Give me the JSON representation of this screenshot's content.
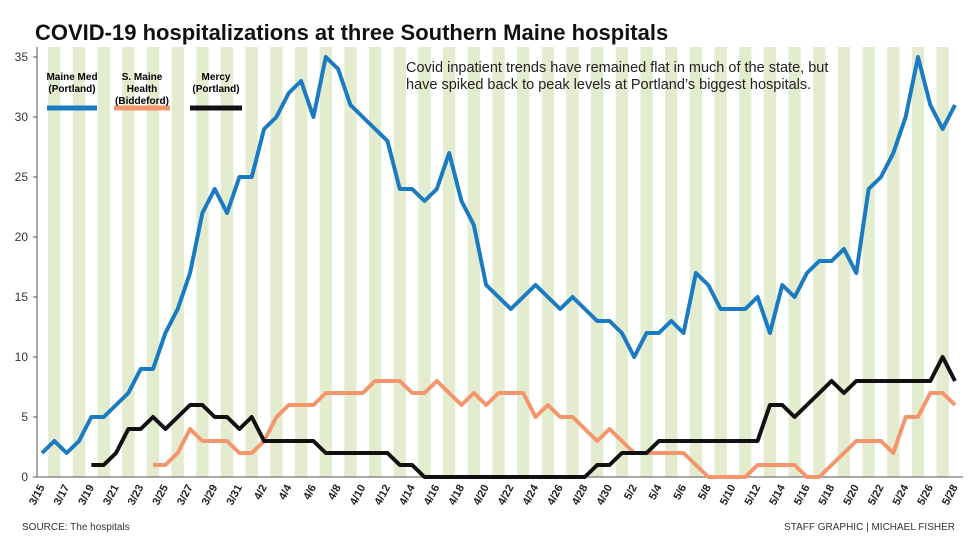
{
  "chart_data": {
    "type": "line",
    "title": "COVID-19 hospitalizations at three Southern Maine hospitals",
    "annotation": "Covid inpatient trends have remained flat in much of the state, but have spiked back to peak levels at Portland’s biggest hospitals.",
    "source": "SOURCE: The hospitals",
    "credit": "STAFF GRAPHIC | MICHAEL FISHER",
    "categories": [
      "3/15",
      null,
      "3/17",
      null,
      "3/19",
      null,
      "3/21",
      null,
      "3/23",
      null,
      "3/25",
      null,
      "3/27",
      null,
      "3/29",
      null,
      "3/31",
      null,
      "4/2",
      null,
      "4/4",
      null,
      "4/6",
      null,
      "4/8",
      null,
      "4/10",
      null,
      "4/12",
      null,
      "4/14",
      null,
      "4/16",
      null,
      "4/18",
      null,
      "4/20",
      null,
      "4/22",
      null,
      "4/24",
      null,
      "4/26",
      null,
      "4/28",
      null,
      "4/30",
      null,
      "5/2",
      null,
      "5/4",
      null,
      "5/6",
      null,
      "5/8",
      null,
      "5/10",
      null,
      "5/12",
      null,
      "5/14",
      null,
      "5/16",
      null,
      "5/18",
      null,
      "5/20",
      null,
      "5/22",
      null,
      "5/24",
      null,
      "5/26",
      null,
      "5/28"
    ],
    "series": [
      {
        "name": "Maine Med (Portland)",
        "color": "#1b7bc2",
        "values": [
          2,
          3,
          2,
          3,
          5,
          5,
          6,
          7,
          9,
          9,
          12,
          14,
          17,
          22,
          24,
          22,
          25,
          25,
          29,
          30,
          32,
          33,
          30,
          35,
          34,
          31,
          30,
          29,
          28,
          24,
          24,
          23,
          24,
          27,
          23,
          21,
          16,
          15,
          14,
          15,
          16,
          15,
          14,
          15,
          14,
          13,
          13,
          12,
          10,
          12,
          12,
          13,
          12,
          17,
          16,
          14,
          14,
          14,
          15,
          12,
          16,
          15,
          17,
          18,
          18,
          19,
          17,
          24,
          25,
          27,
          30,
          35,
          31,
          29,
          31
        ]
      },
      {
        "name": "S. Maine Health (Biddeford)",
        "color": "#f4956c",
        "values": [
          null,
          null,
          null,
          null,
          null,
          null,
          null,
          null,
          null,
          1,
          1,
          2,
          4,
          3,
          3,
          3,
          2,
          2,
          3,
          5,
          6,
          6,
          6,
          7,
          7,
          7,
          7,
          8,
          8,
          8,
          7,
          7,
          8,
          7,
          6,
          7,
          6,
          7,
          7,
          7,
          5,
          6,
          5,
          5,
          4,
          3,
          4,
          3,
          2,
          2,
          2,
          2,
          2,
          1,
          0,
          0,
          0,
          0,
          1,
          1,
          1,
          1,
          0,
          0,
          1,
          2,
          3,
          3,
          3,
          2,
          5,
          5,
          7,
          7,
          6
        ]
      },
      {
        "name": "Mercy (Portland)",
        "color": "#111111",
        "values": [
          null,
          null,
          null,
          null,
          1,
          1,
          2,
          4,
          4,
          5,
          4,
          5,
          6,
          6,
          5,
          5,
          4,
          5,
          3,
          3,
          3,
          3,
          3,
          2,
          2,
          2,
          2,
          2,
          2,
          1,
          1,
          0,
          0,
          0,
          0,
          0,
          0,
          0,
          0,
          0,
          0,
          0,
          0,
          0,
          0,
          1,
          1,
          2,
          2,
          2,
          3,
          3,
          3,
          3,
          3,
          3,
          3,
          3,
          3,
          6,
          6,
          5,
          6,
          7,
          8,
          7,
          8,
          8,
          8,
          8,
          8,
          8,
          8,
          10,
          8
        ]
      }
    ],
    "ylim": [
      0,
      35
    ],
    "yticks": [
      0,
      5,
      10,
      15,
      20,
      25,
      30,
      35
    ],
    "grid": false
  }
}
